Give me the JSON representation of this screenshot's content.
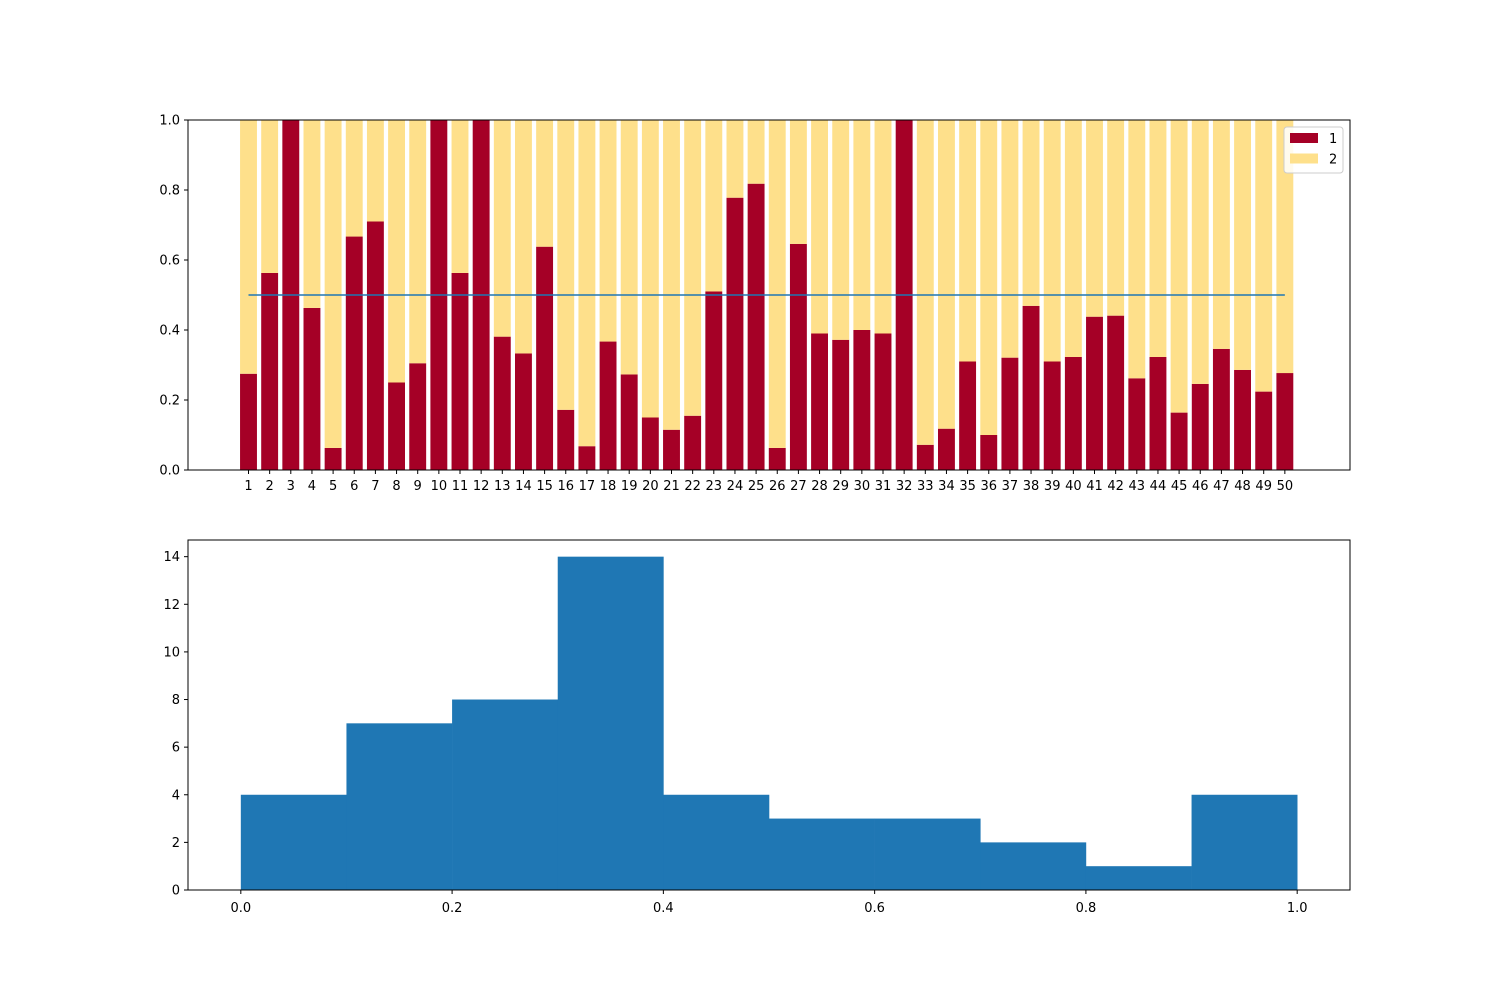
{
  "chart_data": [
    {
      "type": "bar",
      "stacked": true,
      "categories": [
        "1",
        "2",
        "3",
        "4",
        "5",
        "6",
        "7",
        "8",
        "9",
        "10",
        "11",
        "12",
        "13",
        "14",
        "15",
        "16",
        "17",
        "18",
        "19",
        "20",
        "21",
        "22",
        "23",
        "24",
        "25",
        "26",
        "27",
        "28",
        "29",
        "30",
        "31",
        "32",
        "33",
        "34",
        "35",
        "36",
        "37",
        "38",
        "39",
        "40",
        "41",
        "42",
        "43",
        "44",
        "45",
        "46",
        "47",
        "48",
        "49",
        "50"
      ],
      "series": [
        {
          "name": "1",
          "color": "#a50026",
          "values": [
            0.275,
            0.563,
            1.0,
            0.463,
            0.063,
            0.667,
            0.71,
            0.25,
            0.305,
            1.0,
            0.563,
            1.0,
            0.381,
            0.333,
            0.638,
            0.172,
            0.068,
            0.367,
            0.273,
            0.15,
            0.115,
            0.155,
            0.51,
            0.778,
            0.818,
            0.063,
            0.646,
            0.39,
            0.372,
            0.4,
            0.39,
            1.0,
            0.072,
            0.118,
            0.31,
            0.1,
            0.321,
            0.469,
            0.31,
            0.323,
            0.438,
            0.441,
            0.262,
            0.323,
            0.164,
            0.246,
            0.346,
            0.286,
            0.224,
            0.277
          ]
        },
        {
          "name": "2",
          "color": "#fee08b",
          "values": [
            0.725,
            0.437,
            0.0,
            0.537,
            0.937,
            0.333,
            0.29,
            0.75,
            0.695,
            0.0,
            0.437,
            0.0,
            0.619,
            0.667,
            0.362,
            0.828,
            0.932,
            0.633,
            0.727,
            0.85,
            0.885,
            0.845,
            0.49,
            0.222,
            0.182,
            0.937,
            0.354,
            0.61,
            0.628,
            0.6,
            0.61,
            0.0,
            0.928,
            0.882,
            0.69,
            0.9,
            0.679,
            0.531,
            0.69,
            0.677,
            0.562,
            0.559,
            0.738,
            0.677,
            0.836,
            0.754,
            0.654,
            0.714,
            0.776,
            0.723
          ]
        }
      ],
      "reference_line": {
        "y": 0.5,
        "color": "#1f77b4"
      },
      "ylim": [
        0.0,
        1.0
      ],
      "yticks": [
        "0.0",
        "0.2",
        "0.4",
        "0.6",
        "0.8",
        "1.0"
      ],
      "legend": "top-right",
      "grid": false
    },
    {
      "type": "histogram",
      "bins": [
        {
          "x0": 0.0,
          "x1": 0.1,
          "count": 4
        },
        {
          "x0": 0.1,
          "x1": 0.2,
          "count": 7
        },
        {
          "x0": 0.2,
          "x1": 0.3,
          "count": 8
        },
        {
          "x0": 0.3,
          "x1": 0.4,
          "count": 14
        },
        {
          "x0": 0.4,
          "x1": 0.5,
          "count": 4
        },
        {
          "x0": 0.5,
          "x1": 0.6,
          "count": 3
        },
        {
          "x0": 0.6,
          "x1": 0.7,
          "count": 3
        },
        {
          "x0": 0.7,
          "x1": 0.8,
          "count": 2
        },
        {
          "x0": 0.8,
          "x1": 0.9,
          "count": 1
        },
        {
          "x0": 0.9,
          "x1": 1.0,
          "count": 4
        }
      ],
      "color": "#1f77b4",
      "xlim": [
        -0.05,
        1.05
      ],
      "ylim": [
        0,
        14.7
      ],
      "xticks": [
        "0.0",
        "0.2",
        "0.4",
        "0.6",
        "0.8",
        "1.0"
      ],
      "yticks": [
        "0",
        "2",
        "4",
        "6",
        "8",
        "10",
        "12",
        "14"
      ],
      "grid": false
    }
  ]
}
